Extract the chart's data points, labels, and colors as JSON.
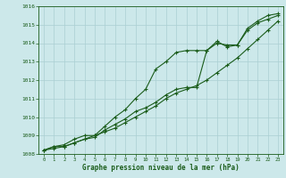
{
  "xlabel": "Graphe pression niveau de la mer (hPa)",
  "ylabel": "",
  "bg_color": "#cce8ea",
  "grid_color": "#aacfd2",
  "line_color": "#1a5c1a",
  "x": [
    0,
    1,
    2,
    3,
    4,
    5,
    6,
    7,
    8,
    9,
    10,
    11,
    12,
    13,
    14,
    15,
    16,
    17,
    18,
    19,
    20,
    21,
    22,
    23
  ],
  "series1": [
    1008.2,
    1008.4,
    1008.5,
    1008.8,
    1009.0,
    1009.0,
    1009.5,
    1010.0,
    1010.4,
    1011.0,
    1011.5,
    1012.6,
    1013.0,
    1013.5,
    1013.6,
    1013.6,
    1013.6,
    1014.0,
    1013.9,
    1013.9,
    1014.8,
    1015.2,
    1015.5,
    1015.6
  ],
  "series2": [
    1008.2,
    1008.4,
    1008.4,
    1008.6,
    1008.8,
    1008.9,
    1009.3,
    1009.6,
    1009.9,
    1010.3,
    1010.5,
    1010.8,
    1011.2,
    1011.5,
    1011.6,
    1011.6,
    1013.6,
    1014.1,
    1013.8,
    1013.9,
    1014.7,
    1015.1,
    1015.3,
    1015.5
  ],
  "series3": [
    1008.2,
    1008.3,
    1008.4,
    1008.6,
    1008.8,
    1009.0,
    1009.2,
    1009.4,
    1009.7,
    1010.0,
    1010.3,
    1010.6,
    1011.0,
    1011.3,
    1011.5,
    1011.7,
    1012.0,
    1012.4,
    1012.8,
    1013.2,
    1013.7,
    1014.2,
    1014.7,
    1015.2
  ],
  "ylim": [
    1008,
    1016
  ],
  "xlim": [
    -0.5,
    23.5
  ],
  "yticks": [
    1008,
    1009,
    1010,
    1011,
    1012,
    1013,
    1014,
    1015,
    1016
  ],
  "xticks": [
    0,
    1,
    2,
    3,
    4,
    5,
    6,
    7,
    8,
    9,
    10,
    11,
    12,
    13,
    14,
    15,
    16,
    17,
    18,
    19,
    20,
    21,
    22,
    23
  ]
}
